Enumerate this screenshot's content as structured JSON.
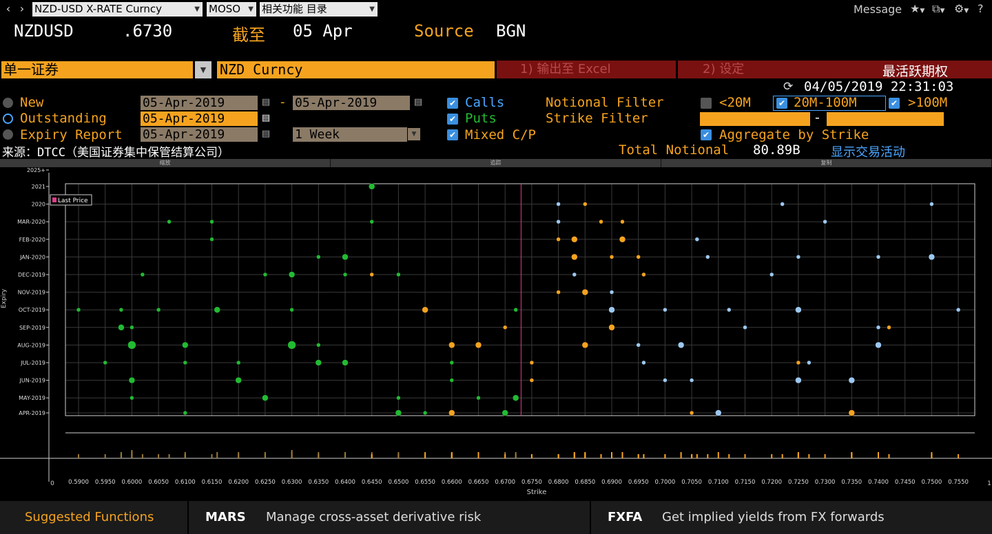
{
  "topbar": {
    "security_field": "NZD-USD X-RATE Curncy",
    "function_field": "MOSO",
    "related_field": "相关功能  目录",
    "message": "Message"
  },
  "header": {
    "ticker": "NZDUSD",
    "price": ".6730",
    "as_of_label": "截至",
    "as_of_date": "05 Apr",
    "source_label": "Source",
    "source_value": "BGN"
  },
  "controls": {
    "security_type": "单一证券",
    "security": "NZD Curncy",
    "export_button": "1) 输出至 Excel",
    "settings_button": "2) 设定",
    "most_active": "最活跃期权",
    "timestamp": "04/05/2019 22:31:03"
  },
  "options": {
    "new_label": "New",
    "outstanding_label": "Outstanding",
    "expiry_label": "Expiry Report",
    "new_from": "05-Apr-2019",
    "new_to": "05-Apr-2019",
    "outstanding_date": "05-Apr-2019",
    "expiry_date": "05-Apr-2019",
    "expiry_period": "1 Week",
    "calls_label": "Calls",
    "puts_label": "Puts",
    "mixed_label": "Mixed C/P",
    "notional_filter_label": "Notional Filter",
    "strike_filter_label": "Strike Filter",
    "lt20": "<20M",
    "mid": "20M-100M",
    "gt100": ">100M",
    "aggregate_label": "Aggregate by Strike",
    "strike_range_sep": "-"
  },
  "source_line": "来源：DTCC（美国证券集中保管结算公司）",
  "total_notional_label": "Total Notional",
  "total_notional_value": "80.89B",
  "show_trades_link": "显示交易活动",
  "chart_toolbar": [
    "缩放",
    "追踪",
    "复制"
  ],
  "footer": {
    "suggested": "Suggested Functions",
    "f1_code": "MARS",
    "f1_desc": "Manage cross-asset derivative risk",
    "f2_code": "FXFA",
    "f2_desc": "Get implied yields from FX forwards"
  },
  "chart_data": {
    "type": "scatter",
    "xlabel": "Strike",
    "ylabel": "Expiry",
    "last_price_label": "Last Price",
    "last_price": 0.673,
    "x_ticks": [
      "0.5900",
      "0.5950",
      "0.6000",
      "0.6050",
      "0.6100",
      "0.6150",
      "0.6200",
      "0.6250",
      "0.6300",
      "0.6350",
      "0.6400",
      "0.6450",
      "0.6500",
      "0.6550",
      "0.6600",
      "0.6650",
      "0.6700",
      "0.6750",
      "0.6800",
      "0.6850",
      "0.6900",
      "0.6950",
      "0.7000",
      "0.7050",
      "0.7100",
      "0.7150",
      "0.7200",
      "0.7250",
      "0.7300",
      "0.7350",
      "0.7400",
      "0.7450",
      "0.7500",
      "0.7550"
    ],
    "x_edge_left": "0",
    "x_edge_right": "1",
    "y_ticks": [
      "2025+",
      "2021",
      "2020",
      "MAR-2020",
      "FEB-2020",
      "JAN-2020",
      "DEC-2019",
      "NOV-2019",
      "OCT-2019",
      "SEP-2019",
      "AUG-2019",
      "JUL-2019",
      "JUN-2019",
      "MAY-2019",
      "APR-2019"
    ],
    "series": [
      {
        "name": "Calls",
        "color": "#22bb33",
        "points": [
          [
            0.59,
            "OCT-2019",
            1
          ],
          [
            0.595,
            "JUL-2019",
            1
          ],
          [
            0.598,
            "OCT-2019",
            1
          ],
          [
            0.598,
            "SEP-2019",
            2
          ],
          [
            0.6,
            "AUG-2019",
            3
          ],
          [
            0.6,
            "JUN-2019",
            2
          ],
          [
            0.6,
            "MAY-2019",
            1
          ],
          [
            0.6,
            "SEP-2019",
            1
          ],
          [
            0.602,
            "DEC-2019",
            1
          ],
          [
            0.605,
            "OCT-2019",
            1
          ],
          [
            0.607,
            "MAR-2020",
            1
          ],
          [
            0.61,
            "AUG-2019",
            2
          ],
          [
            0.61,
            "JUL-2019",
            1
          ],
          [
            0.61,
            "APR-2019",
            1
          ],
          [
            0.615,
            "MAR-2020",
            1
          ],
          [
            0.615,
            "FEB-2020",
            1
          ],
          [
            0.616,
            "OCT-2019",
            2
          ],
          [
            0.62,
            "JUL-2019",
            1
          ],
          [
            0.62,
            "JUN-2019",
            2
          ],
          [
            0.625,
            "DEC-2019",
            1
          ],
          [
            0.625,
            "MAY-2019",
            2
          ],
          [
            0.63,
            "DEC-2019",
            2
          ],
          [
            0.63,
            "AUG-2019",
            3
          ],
          [
            0.63,
            "OCT-2019",
            1
          ],
          [
            0.635,
            "JAN-2020",
            1
          ],
          [
            0.635,
            "AUG-2019",
            1
          ],
          [
            0.635,
            "JUL-2019",
            2
          ],
          [
            0.64,
            "JAN-2020",
            2
          ],
          [
            0.64,
            "DEC-2019",
            1
          ],
          [
            0.64,
            "JUL-2019",
            2
          ],
          [
            0.645,
            "2021",
            2
          ],
          [
            0.645,
            "MAR-2020",
            1
          ],
          [
            0.65,
            "APR-2019",
            2
          ],
          [
            0.65,
            "MAY-2019",
            1
          ],
          [
            0.65,
            "DEC-2019",
            1
          ],
          [
            0.655,
            "APR-2019",
            1
          ],
          [
            0.66,
            "JUL-2019",
            1
          ],
          [
            0.66,
            "JUN-2019",
            1
          ],
          [
            0.665,
            "MAY-2019",
            1
          ],
          [
            0.67,
            "APR-2019",
            2
          ],
          [
            0.672,
            "MAY-2019",
            2
          ],
          [
            0.672,
            "OCT-2019",
            1
          ]
        ]
      },
      {
        "name": "Puts",
        "color": "#f5a31f",
        "points": [
          [
            0.645,
            "DEC-2019",
            1
          ],
          [
            0.655,
            "OCT-2019",
            2
          ],
          [
            0.66,
            "AUG-2019",
            2
          ],
          [
            0.66,
            "APR-2019",
            2
          ],
          [
            0.665,
            "AUG-2019",
            2
          ],
          [
            0.67,
            "SEP-2019",
            1
          ],
          [
            0.675,
            "JUL-2019",
            1
          ],
          [
            0.675,
            "JUN-2019",
            1
          ],
          [
            0.68,
            "FEB-2020",
            1
          ],
          [
            0.68,
            "NOV-2019",
            1
          ],
          [
            0.683,
            "JAN-2020",
            2
          ],
          [
            0.683,
            "FEB-2020",
            2
          ],
          [
            0.685,
            "NOV-2019",
            2
          ],
          [
            0.685,
            "AUG-2019",
            2
          ],
          [
            0.685,
            "2020",
            1
          ],
          [
            0.688,
            "MAR-2020",
            1
          ],
          [
            0.69,
            "SEP-2019",
            2
          ],
          [
            0.69,
            "JAN-2020",
            1
          ],
          [
            0.692,
            "FEB-2020",
            2
          ],
          [
            0.692,
            "MAR-2020",
            1
          ],
          [
            0.696,
            "DEC-2019",
            1
          ],
          [
            0.695,
            "JAN-2020",
            1
          ],
          [
            0.705,
            "JUN-2019",
            1
          ],
          [
            0.705,
            "APR-2019",
            1
          ],
          [
            0.725,
            "JUL-2019",
            1
          ],
          [
            0.735,
            "APR-2019",
            2
          ],
          [
            0.742,
            "SEP-2019",
            1
          ]
        ]
      },
      {
        "name": "Mixed",
        "color": "#9cc8f0",
        "points": [
          [
            0.68,
            "2020",
            1
          ],
          [
            0.68,
            "MAR-2020",
            1
          ],
          [
            0.683,
            "DEC-2019",
            1
          ],
          [
            0.69,
            "OCT-2019",
            2
          ],
          [
            0.69,
            "NOV-2019",
            1
          ],
          [
            0.695,
            "AUG-2019",
            1
          ],
          [
            0.696,
            "JUL-2019",
            1
          ],
          [
            0.7,
            "OCT-2019",
            1
          ],
          [
            0.7,
            "JUN-2019",
            1
          ],
          [
            0.703,
            "AUG-2019",
            2
          ],
          [
            0.705,
            "JUN-2019",
            1
          ],
          [
            0.706,
            "FEB-2020",
            1
          ],
          [
            0.708,
            "JAN-2020",
            1
          ],
          [
            0.71,
            "APR-2019",
            2
          ],
          [
            0.712,
            "OCT-2019",
            1
          ],
          [
            0.715,
            "SEP-2019",
            1
          ],
          [
            0.72,
            "DEC-2019",
            1
          ],
          [
            0.722,
            "2020",
            1
          ],
          [
            0.725,
            "OCT-2019",
            2
          ],
          [
            0.725,
            "JAN-2020",
            1
          ],
          [
            0.725,
            "JUN-2019",
            2
          ],
          [
            0.727,
            "JUL-2019",
            1
          ],
          [
            0.73,
            "MAR-2020",
            1
          ],
          [
            0.735,
            "JUN-2019",
            2
          ],
          [
            0.74,
            "AUG-2019",
            2
          ],
          [
            0.74,
            "SEP-2019",
            1
          ],
          [
            0.74,
            "JAN-2020",
            1
          ],
          [
            0.75,
            "2020",
            1
          ],
          [
            0.75,
            "JAN-2020",
            2
          ],
          [
            0.755,
            "OCT-2019",
            1
          ]
        ]
      }
    ]
  },
  "colors": {
    "accent_orange": "#f5a31f",
    "link_blue": "#4aa6ff",
    "export_bg": "#7a1111",
    "last_price_line": "#e23c8c"
  }
}
